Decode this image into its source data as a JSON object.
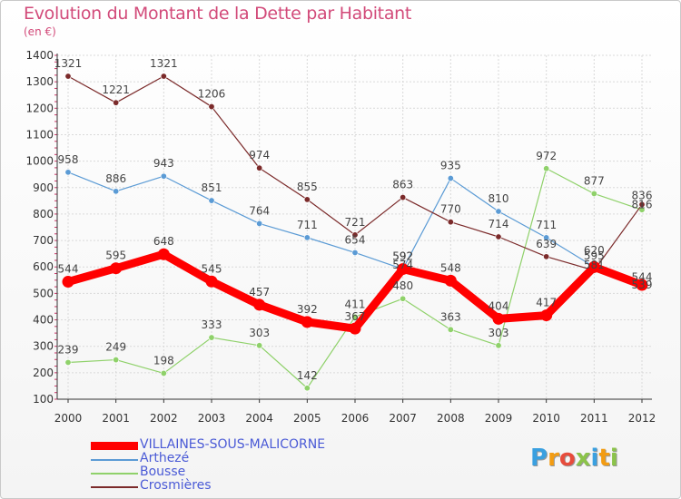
{
  "title": "Evolution du Montant de la Dette par Habitant",
  "subtitle": "(en €)",
  "logo": "Proxiti",
  "colors": {
    "title": "#d24b7a",
    "legend_text": "#4a5ad6",
    "grid": "#d9d9d9",
    "axis": "#333333"
  },
  "chart_data": {
    "type": "line",
    "x": [
      "2000",
      "2001",
      "2002",
      "2003",
      "2004",
      "2005",
      "2006",
      "2007",
      "2008",
      "2009",
      "2010",
      "2011",
      "2012"
    ],
    "ylim": [
      100,
      1400
    ],
    "yticks": [
      100,
      200,
      300,
      400,
      500,
      600,
      700,
      800,
      900,
      1000,
      1100,
      1200,
      1300,
      1400
    ],
    "grid": true,
    "legend_position": "bottom-left",
    "series": [
      {
        "name": "VILLAINES-SOUS-MALICORNE",
        "color": "#ff0000",
        "values": [
          544,
          595,
          648,
          545,
          457,
          392,
          367,
          592,
          548,
          404,
          417,
          600,
          532
        ],
        "labels": [
          "544",
          "595",
          "648",
          "545",
          "457",
          "392",
          "",
          "592",
          "548",
          "404",
          "417",
          "",
          ""
        ]
      },
      {
        "name": "Arthezé",
        "color": "#5b9bd5",
        "values": [
          958,
          886,
          943,
          851,
          764,
          711,
          654,
          592,
          935,
          810,
          711,
          600,
          541
        ],
        "labels": [
          "958",
          "886",
          "943",
          "851",
          "764",
          "711",
          "654",
          "",
          "935",
          "810",
          "711",
          "",
          ""
        ]
      },
      {
        "name": "Bousse",
        "color": "#8fd16a",
        "values": [
          239,
          249,
          198,
          333,
          303,
          142,
          411,
          480,
          363,
          303,
          972,
          877,
          816
        ],
        "labels": [
          "239",
          "249",
          "198",
          "333",
          "303",
          "142",
          "411",
          "480",
          "363",
          "303",
          "972",
          "877",
          ""
        ]
      },
      {
        "name": "Crosmières",
        "color": "#7b2a2a",
        "values": [
          1321,
          1221,
          1321,
          1206,
          974,
          855,
          721,
          863,
          770,
          714,
          639,
          587,
          836
        ],
        "labels": [
          "1321",
          "1221",
          "1321",
          "1206",
          "974",
          "855",
          "721",
          "863",
          "770",
          "714",
          "639",
          "",
          ""
        ]
      }
    ],
    "overlapping_labels": [
      "574",
      "592",
      "620",
      "595",
      "581",
      "544",
      "539",
      "816",
      "836",
      "367"
    ]
  }
}
